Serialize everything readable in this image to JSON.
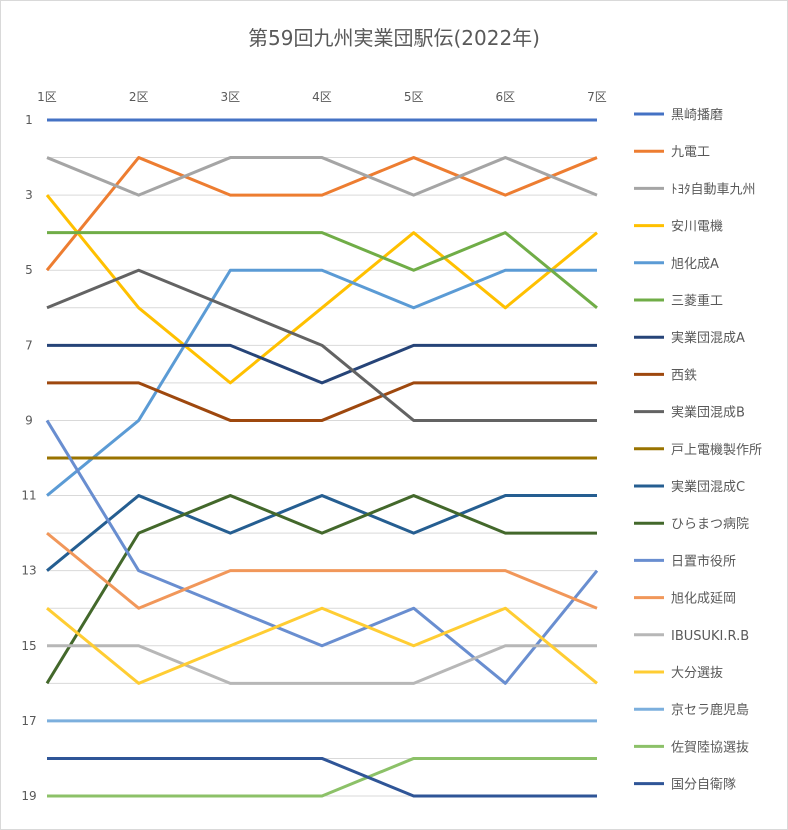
{
  "chart_data": {
    "type": "line",
    "title": "第59回九州実業団駅伝(2022年)",
    "categories": [
      "1区",
      "2区",
      "3区",
      "4区",
      "5区",
      "6区",
      "7区"
    ],
    "y_ticks": [
      1,
      3,
      5,
      7,
      9,
      11,
      13,
      15,
      17,
      19
    ],
    "ylim": [
      1,
      19
    ],
    "y_reversed": true,
    "grid": true,
    "legend_position": "right",
    "series": [
      {
        "name": "黒崎播磨",
        "color": "#4472C4",
        "values": [
          1,
          1,
          1,
          1,
          1,
          1,
          1
        ]
      },
      {
        "name": "九電工",
        "color": "#ED7D31",
        "values": [
          5,
          2,
          3,
          3,
          2,
          3,
          2
        ]
      },
      {
        "name": "ﾄﾖﾀ自動車九州",
        "color": "#A5A5A5",
        "values": [
          2,
          3,
          2,
          2,
          3,
          2,
          3
        ]
      },
      {
        "name": "安川電機",
        "color": "#FFC000",
        "values": [
          3,
          6,
          8,
          6,
          4,
          6,
          4
        ]
      },
      {
        "name": "旭化成A",
        "color": "#5B9BD5",
        "values": [
          11,
          9,
          5,
          5,
          6,
          5,
          5
        ]
      },
      {
        "name": "三菱重工",
        "color": "#70AD47",
        "values": [
          4,
          4,
          4,
          4,
          5,
          4,
          6
        ]
      },
      {
        "name": "実業団混成A",
        "color": "#264478",
        "values": [
          7,
          7,
          7,
          8,
          7,
          7,
          7
        ]
      },
      {
        "name": "西鉄",
        "color": "#9E480E",
        "values": [
          8,
          8,
          9,
          9,
          8,
          8,
          8
        ]
      },
      {
        "name": "実業団混成B",
        "color": "#636363",
        "values": [
          6,
          5,
          6,
          7,
          9,
          9,
          9
        ]
      },
      {
        "name": "戸上電機製作所",
        "color": "#997300",
        "values": [
          10,
          10,
          10,
          10,
          10,
          10,
          10
        ]
      },
      {
        "name": "実業団混成C",
        "color": "#255E91",
        "values": [
          13,
          11,
          12,
          11,
          12,
          11,
          11
        ]
      },
      {
        "name": "ひらまつ病院",
        "color": "#43682B",
        "values": [
          16,
          12,
          11,
          12,
          11,
          12,
          12
        ]
      },
      {
        "name": "日置市役所",
        "color": "#698ED0",
        "values": [
          9,
          13,
          14,
          15,
          14,
          16,
          13
        ]
      },
      {
        "name": "旭化成延岡",
        "color": "#F1975A",
        "values": [
          12,
          14,
          13,
          13,
          13,
          13,
          14
        ]
      },
      {
        "name": "IBUSUKI.R.B",
        "color": "#B7B7B7",
        "values": [
          15,
          15,
          16,
          16,
          16,
          15,
          15
        ]
      },
      {
        "name": "大分選抜",
        "color": "#FFCD33",
        "values": [
          14,
          16,
          15,
          14,
          15,
          14,
          16
        ]
      },
      {
        "name": "京セラ鹿児島",
        "color": "#7CAFDD",
        "values": [
          17,
          17,
          17,
          17,
          17,
          17,
          17
        ]
      },
      {
        "name": "佐賀陸協選抜",
        "color": "#8CC168",
        "values": [
          19,
          19,
          19,
          19,
          18,
          18,
          18
        ]
      },
      {
        "name": "国分自衛隊",
        "color": "#2F5597",
        "values": [
          18,
          18,
          18,
          18,
          19,
          19,
          19
        ]
      }
    ]
  }
}
